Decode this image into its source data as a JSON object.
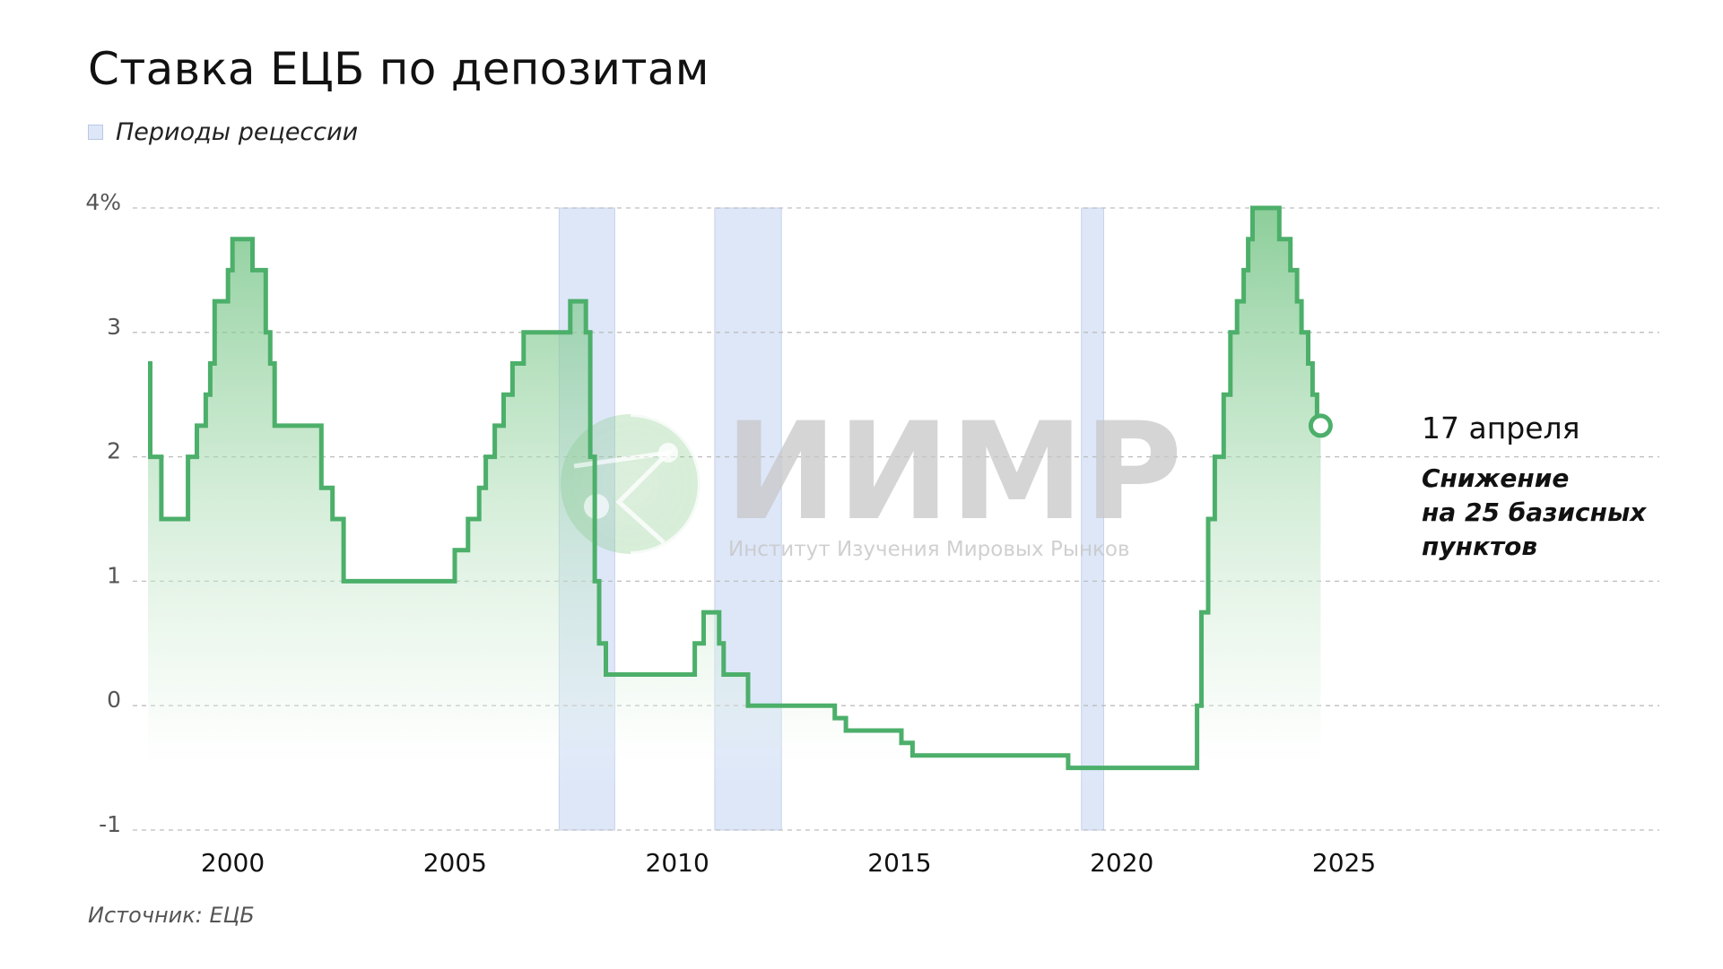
{
  "title": "Ставка ЕЦБ по депозитам",
  "legend": {
    "label": "Периоды рецессии",
    "color": "#dde7f8"
  },
  "source": "Источник: ЕЦБ",
  "watermark": {
    "name": "ИИМР",
    "subtitle": "Институт Изучения Мировых Рынков"
  },
  "annotation": {
    "date": "17 апреля",
    "note_lines": [
      "Снижение",
      "на 25 базисных",
      "пунктов"
    ]
  },
  "colors": {
    "line": "#4caf6a",
    "fill": "#7ccc8c",
    "recession": "#dde7f8",
    "grid": "#bdbdbd"
  },
  "chart_data": {
    "type": "line",
    "step": true,
    "title": "Ставка ЕЦБ по депозитам",
    "xlim": [
      1999.0,
      2033.0
    ],
    "ylim": [
      -1,
      4
    ],
    "y_ticks": [
      {
        "value": 4,
        "label": "4%"
      },
      {
        "value": 3,
        "label": "3"
      },
      {
        "value": 2,
        "label": "2"
      },
      {
        "value": 1,
        "label": "1"
      },
      {
        "value": 0,
        "label": "0"
      },
      {
        "value": -1,
        "label": "-1"
      }
    ],
    "x_ticks": [
      2000,
      2005,
      2010,
      2015,
      2020,
      2025
    ],
    "recessions": [
      [
        2008.25,
        2009.5
      ],
      [
        2011.75,
        2013.25
      ],
      [
        2020.0,
        2020.5
      ]
    ],
    "series": [
      {
        "values": [
          [
            1999.0,
            2.75
          ],
          [
            1999.05,
            2.0
          ],
          [
            1999.3,
            1.5
          ],
          [
            1999.9,
            2.0
          ],
          [
            2000.1,
            2.25
          ],
          [
            2000.3,
            2.5
          ],
          [
            2000.4,
            2.75
          ],
          [
            2000.5,
            3.25
          ],
          [
            2000.8,
            3.5
          ],
          [
            2000.9,
            3.75
          ],
          [
            2001.35,
            3.5
          ],
          [
            2001.65,
            3.0
          ],
          [
            2001.75,
            2.75
          ],
          [
            2001.85,
            2.25
          ],
          [
            2002.9,
            1.75
          ],
          [
            2003.15,
            1.5
          ],
          [
            2003.4,
            1.0
          ],
          [
            2005.9,
            1.25
          ],
          [
            2006.2,
            1.5
          ],
          [
            2006.45,
            1.75
          ],
          [
            2006.6,
            2.0
          ],
          [
            2006.8,
            2.25
          ],
          [
            2007.0,
            2.5
          ],
          [
            2007.2,
            2.75
          ],
          [
            2007.45,
            3.0
          ],
          [
            2008.5,
            3.25
          ],
          [
            2008.85,
            3.0
          ],
          [
            2008.95,
            2.0
          ],
          [
            2009.05,
            1.0
          ],
          [
            2009.15,
            0.5
          ],
          [
            2009.3,
            0.25
          ],
          [
            2011.3,
            0.5
          ],
          [
            2011.5,
            0.75
          ],
          [
            2011.85,
            0.5
          ],
          [
            2011.95,
            0.25
          ],
          [
            2012.5,
            0.0
          ],
          [
            2014.45,
            -0.1
          ],
          [
            2014.7,
            -0.2
          ],
          [
            2015.95,
            -0.3
          ],
          [
            2016.2,
            -0.4
          ],
          [
            2019.7,
            -0.5
          ],
          [
            2022.6,
            0.0
          ],
          [
            2022.7,
            0.75
          ],
          [
            2022.85,
            1.5
          ],
          [
            2023.0,
            2.0
          ],
          [
            2023.2,
            2.5
          ],
          [
            2023.35,
            3.0
          ],
          [
            2023.5,
            3.25
          ],
          [
            2023.65,
            3.5
          ],
          [
            2023.75,
            3.75
          ],
          [
            2023.85,
            4.0
          ],
          [
            2024.45,
            3.75
          ],
          [
            2024.7,
            3.5
          ],
          [
            2024.85,
            3.25
          ],
          [
            2024.95,
            3.0
          ],
          [
            2025.1,
            2.75
          ],
          [
            2025.2,
            2.5
          ],
          [
            2025.3,
            2.25
          ]
        ]
      }
    ]
  }
}
